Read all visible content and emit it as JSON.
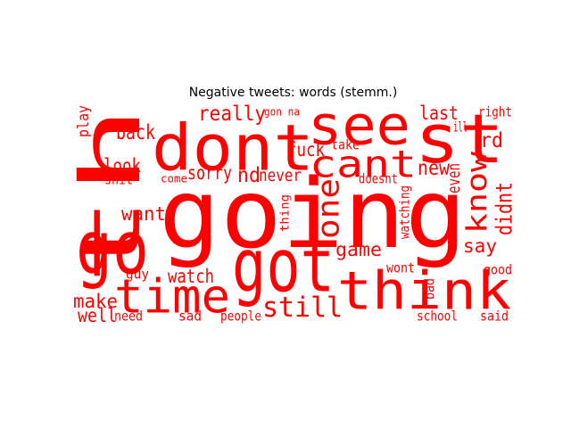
{
  "chart_data": {
    "type": "wordcloud",
    "title": "Negative tweets: words (stemm.)",
    "color": "#ff0000",
    "background": "#ffffff",
    "words": [
      {
        "text": "going"
      },
      {
        "text": "th"
      },
      {
        "text": "dont"
      },
      {
        "text": "see"
      },
      {
        "text": "st"
      },
      {
        "text": "go"
      },
      {
        "text": "got"
      },
      {
        "text": "think"
      },
      {
        "text": "time"
      },
      {
        "text": "cant"
      },
      {
        "text": "still"
      },
      {
        "text": "one"
      },
      {
        "text": "know"
      },
      {
        "text": "really"
      },
      {
        "text": "last"
      },
      {
        "text": "rd"
      },
      {
        "text": "fuck"
      },
      {
        "text": "new"
      },
      {
        "text": "even"
      },
      {
        "text": "back"
      },
      {
        "text": "look"
      },
      {
        "text": "sorry"
      },
      {
        "text": "nd"
      },
      {
        "text": "never"
      },
      {
        "text": "want"
      },
      {
        "text": "didnt"
      },
      {
        "text": "say"
      },
      {
        "text": "game"
      },
      {
        "text": "watch"
      },
      {
        "text": "make"
      },
      {
        "text": "well"
      },
      {
        "text": "play"
      },
      {
        "text": "gon na"
      },
      {
        "text": "right"
      },
      {
        "text": "take"
      },
      {
        "text": "ill"
      },
      {
        "text": "shit"
      },
      {
        "text": "come"
      },
      {
        "text": "doesnt"
      },
      {
        "text": "thing"
      },
      {
        "text": "watching"
      },
      {
        "text": "guy"
      },
      {
        "text": "wont"
      },
      {
        "text": "good"
      },
      {
        "text": "bad"
      },
      {
        "text": "need"
      },
      {
        "text": "sad"
      },
      {
        "text": "people"
      },
      {
        "text": "school"
      },
      {
        "text": "said"
      }
    ]
  }
}
